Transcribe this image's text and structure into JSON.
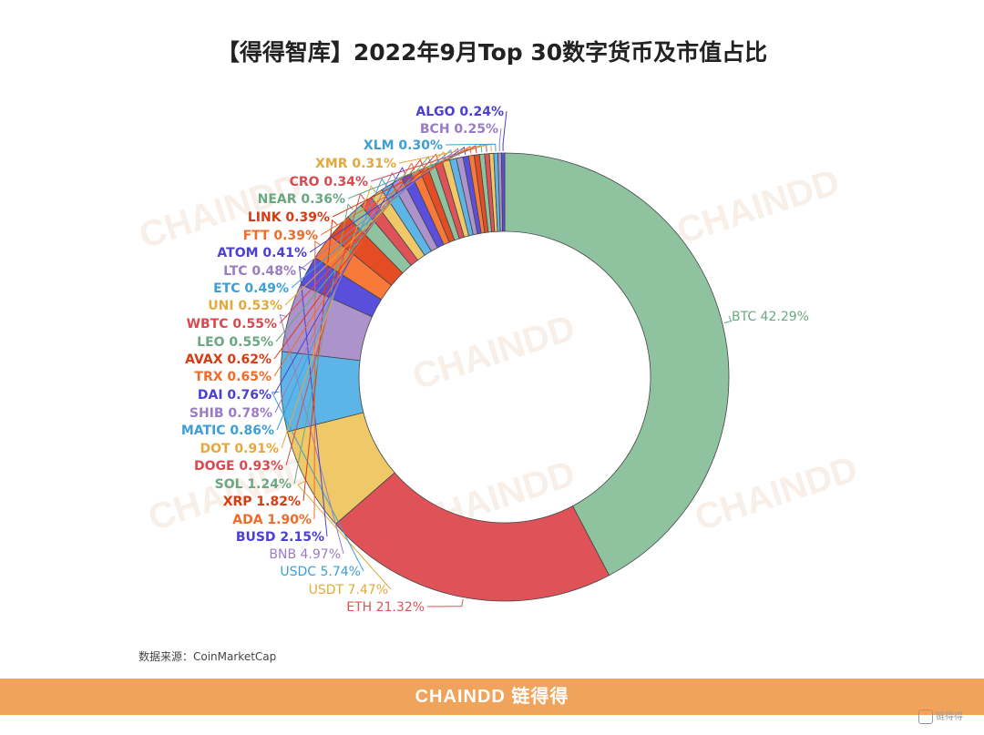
{
  "title": "【得得智库】2022年9月Top 30数字货币及市值占比",
  "source": "数据来源：CoinMarketCap",
  "footer": {
    "brand": "CHAINDD 链得得"
  },
  "watermark": "CHAINDD",
  "bottom_logo": "链得得",
  "chart_data": {
    "type": "pie",
    "subtype": "donut",
    "unit": "%",
    "slices": [
      {
        "name": "BTC",
        "value": 42.29,
        "color": "#8fc3a0",
        "label_color": "#6aa884"
      },
      {
        "name": "ETH",
        "value": 21.32,
        "color": "#df5358",
        "label_color": "#df5358"
      },
      {
        "name": "USDT",
        "value": 7.47,
        "color": "#efc968",
        "label_color": "#e3a93c"
      },
      {
        "name": "USDC",
        "value": 5.74,
        "color": "#5cb5e6",
        "label_color": "#3d9fd6"
      },
      {
        "name": "BNB",
        "value": 4.97,
        "color": "#ad93cc",
        "label_color": "#9a7cc4"
      },
      {
        "name": "BUSD",
        "value": 2.15,
        "color": "#5a4fdc",
        "label_color": "#4b3fd4"
      },
      {
        "name": "ADA",
        "value": 1.9,
        "color": "#f77a3a",
        "label_color": "#f06a2a"
      },
      {
        "name": "XRP",
        "value": 1.82,
        "color": "#e44c24",
        "label_color": "#d83a14"
      },
      {
        "name": "SOL",
        "value": 1.24,
        "color": "#8fc3a0",
        "label_color": "#6aa884"
      },
      {
        "name": "DOGE",
        "value": 0.93,
        "color": "#df5358",
        "label_color": "#d84a50"
      },
      {
        "name": "DOT",
        "value": 0.91,
        "color": "#efc968",
        "label_color": "#e3a93c"
      },
      {
        "name": "MATIC",
        "value": 0.86,
        "color": "#5cb5e6",
        "label_color": "#3d9fd6"
      },
      {
        "name": "SHIB",
        "value": 0.78,
        "color": "#ad93cc",
        "label_color": "#9a7cc4"
      },
      {
        "name": "DAI",
        "value": 0.76,
        "color": "#5a4fdc",
        "label_color": "#4b3fd4"
      },
      {
        "name": "TRX",
        "value": 0.65,
        "color": "#f77a3a",
        "label_color": "#f06a2a"
      },
      {
        "name": "AVAX",
        "value": 0.62,
        "color": "#e44c24",
        "label_color": "#d83a14"
      },
      {
        "name": "LEO",
        "value": 0.55,
        "color": "#8fc3a0",
        "label_color": "#6aa884"
      },
      {
        "name": "WBTC",
        "value": 0.55,
        "color": "#df5358",
        "label_color": "#d84a50"
      },
      {
        "name": "UNI",
        "value": 0.53,
        "color": "#efc968",
        "label_color": "#e3a93c"
      },
      {
        "name": "ETC",
        "value": 0.49,
        "color": "#5cb5e6",
        "label_color": "#3d9fd6"
      },
      {
        "name": "LTC",
        "value": 0.48,
        "color": "#ad93cc",
        "label_color": "#9a7cc4"
      },
      {
        "name": "ATOM",
        "value": 0.41,
        "color": "#5a4fdc",
        "label_color": "#4b3fd4"
      },
      {
        "name": "FTT",
        "value": 0.39,
        "color": "#f77a3a",
        "label_color": "#f06a2a"
      },
      {
        "name": "LINK",
        "value": 0.39,
        "color": "#e44c24",
        "label_color": "#d83a14"
      },
      {
        "name": "NEAR",
        "value": 0.36,
        "color": "#8fc3a0",
        "label_color": "#6aa884"
      },
      {
        "name": "CRO",
        "value": 0.34,
        "color": "#df5358",
        "label_color": "#d84a50"
      },
      {
        "name": "XMR",
        "value": 0.31,
        "color": "#efc968",
        "label_color": "#e3a93c"
      },
      {
        "name": "XLM",
        "value": 0.3,
        "color": "#5cb5e6",
        "label_color": "#3d9fd6"
      },
      {
        "name": "BCH",
        "value": 0.25,
        "color": "#ad93cc",
        "label_color": "#9a7cc4"
      },
      {
        "name": "ALGO",
        "value": 0.24,
        "color": "#5a4fdc",
        "label_color": "#4b3fd4"
      }
    ]
  }
}
